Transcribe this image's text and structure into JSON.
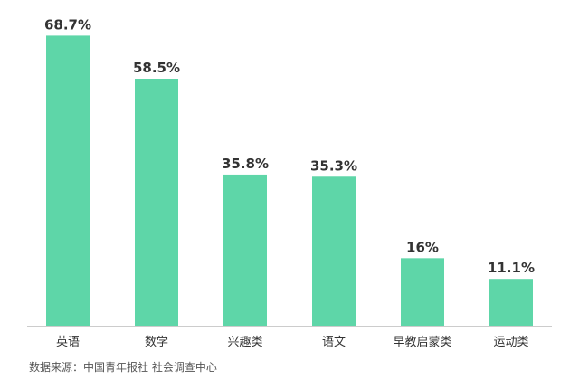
{
  "chart_data": {
    "type": "bar",
    "categories": [
      "英语",
      "数学",
      "兴趣类",
      "语文",
      "早教启蒙类",
      "运动类"
    ],
    "values": [
      68.7,
      58.5,
      35.8,
      35.3,
      16,
      11.1
    ],
    "value_labels": [
      "68.7%",
      "58.5%",
      "35.8%",
      "35.3%",
      "16%",
      "11.1%"
    ],
    "ylim": [
      0,
      75
    ],
    "grid": false,
    "legend": "none",
    "bar_color": "#5ed6a8",
    "axis_color": "#cccccc"
  },
  "source": "数据来源：中国青年报社 社会调查中心"
}
